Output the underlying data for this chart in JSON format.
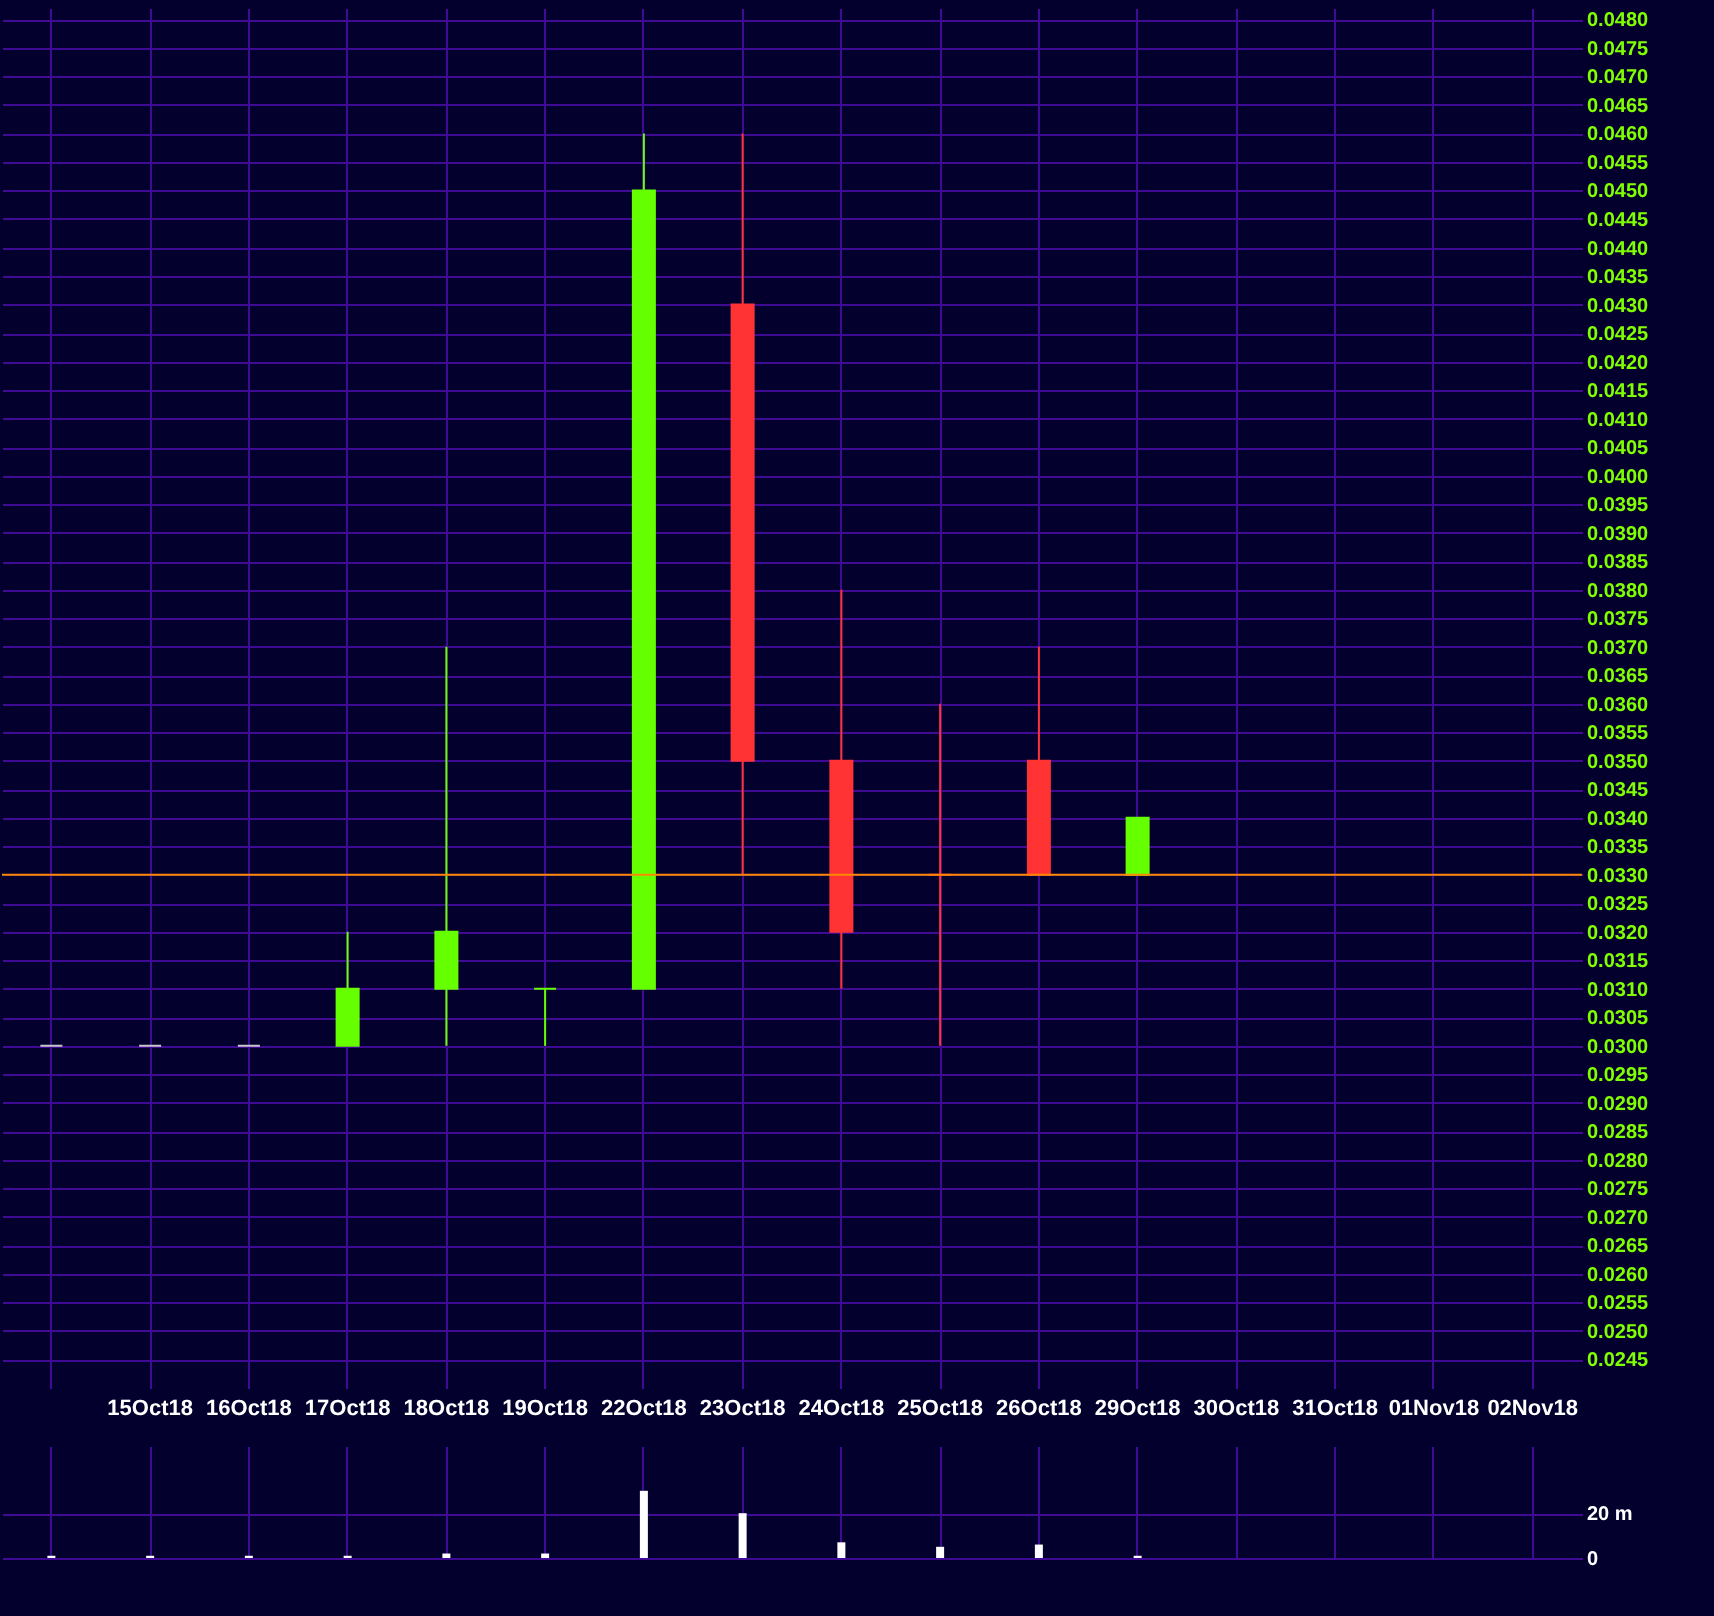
{
  "chart_data": [
    {
      "type": "candlestick",
      "categories": [
        null,
        "15Oct18",
        "16Oct18",
        "17Oct18",
        "18Oct18",
        "19Oct18",
        "22Oct18",
        "23Oct18",
        "24Oct18",
        "25Oct18",
        "26Oct18",
        "29Oct18",
        "30Oct18",
        "31Oct18",
        "01Nov18",
        "02Nov18"
      ],
      "ohlc": [
        [
          0.03,
          0.03,
          0.03,
          0.03
        ],
        [
          0.03,
          0.03,
          0.03,
          0.03
        ],
        [
          0.03,
          0.03,
          0.03,
          0.03
        ],
        [
          0.03,
          0.032,
          0.03,
          0.031
        ],
        [
          0.031,
          0.037,
          0.03,
          0.032
        ],
        [
          0.031,
          0.031,
          0.03,
          0.031
        ],
        [
          0.031,
          0.046,
          0.031,
          0.045
        ],
        [
          0.043,
          0.046,
          0.033,
          0.035
        ],
        [
          0.035,
          0.038,
          0.031,
          0.032
        ],
        [
          0.033,
          0.036,
          0.03,
          0.033
        ],
        [
          0.035,
          0.037,
          0.033,
          0.033
        ],
        [
          0.033,
          0.034,
          0.033,
          0.034
        ],
        null,
        null,
        null,
        null
      ],
      "colors": [
        "#c8c8c8",
        "#c8c8c8",
        "#c8c8c8",
        "#66ff00",
        "#66ff00",
        "#66ff00",
        "#66ff00",
        "#ff3333",
        "#ff3333",
        "#ff3333",
        "#ff3333",
        "#66ff00",
        null,
        null,
        null,
        null
      ],
      "ylim": [
        0.024,
        0.0482
      ],
      "yticks": [
        {
          "value": 0.0245,
          "label": "0.0245"
        },
        {
          "value": 0.025,
          "label": "0.0250"
        },
        {
          "value": 0.0255,
          "label": "0.0255"
        },
        {
          "value": 0.026,
          "label": "0.0260"
        },
        {
          "value": 0.0265,
          "label": "0.0265"
        },
        {
          "value": 0.027,
          "label": "0.0270"
        },
        {
          "value": 0.0275,
          "label": "0.0275"
        },
        {
          "value": 0.028,
          "label": "0.0280"
        },
        {
          "value": 0.0285,
          "label": "0.0285"
        },
        {
          "value": 0.029,
          "label": "0.0290"
        },
        {
          "value": 0.0295,
          "label": "0.0295"
        },
        {
          "value": 0.03,
          "label": "0.0300"
        },
        {
          "value": 0.0305,
          "label": "0.0305"
        },
        {
          "value": 0.031,
          "label": "0.0310"
        },
        {
          "value": 0.0315,
          "label": "0.0315"
        },
        {
          "value": 0.032,
          "label": "0.0320"
        },
        {
          "value": 0.0325,
          "label": "0.0325"
        },
        {
          "value": 0.033,
          "label": "0.0330"
        },
        {
          "value": 0.0335,
          "label": "0.0335"
        },
        {
          "value": 0.034,
          "label": "0.0340"
        },
        {
          "value": 0.0345,
          "label": "0.0345"
        },
        {
          "value": 0.035,
          "label": "0.0350"
        },
        {
          "value": 0.0355,
          "label": "0.0355"
        },
        {
          "value": 0.036,
          "label": "0.0360"
        },
        {
          "value": 0.0365,
          "label": "0.0365"
        },
        {
          "value": 0.037,
          "label": "0.0370"
        },
        {
          "value": 0.0375,
          "label": "0.0375"
        },
        {
          "value": 0.038,
          "label": "0.0380"
        },
        {
          "value": 0.0385,
          "label": "0.0385"
        },
        {
          "value": 0.039,
          "label": "0.0390"
        },
        {
          "value": 0.0395,
          "label": "0.0395"
        },
        {
          "value": 0.04,
          "label": "0.0400"
        },
        {
          "value": 0.0405,
          "label": "0.0405"
        },
        {
          "value": 0.041,
          "label": "0.0410"
        },
        {
          "value": 0.0415,
          "label": "0.0415"
        },
        {
          "value": 0.042,
          "label": "0.0420"
        },
        {
          "value": 0.0425,
          "label": "0.0425"
        },
        {
          "value": 0.043,
          "label": "0.0430"
        },
        {
          "value": 0.0435,
          "label": "0.0435"
        },
        {
          "value": 0.044,
          "label": "0.0440"
        },
        {
          "value": 0.0445,
          "label": "0.0445"
        },
        {
          "value": 0.045,
          "label": "0.0450"
        },
        {
          "value": 0.0455,
          "label": "0.0455"
        },
        {
          "value": 0.046,
          "label": "0.0460"
        },
        {
          "value": 0.0465,
          "label": "0.0465"
        },
        {
          "value": 0.047,
          "label": "0.0470"
        },
        {
          "value": 0.0475,
          "label": "0.0475"
        },
        {
          "value": 0.048,
          "label": "0.0480"
        }
      ],
      "ref_lines": [
        {
          "axis": "y",
          "value": 0.033,
          "color": "#ff8800"
        }
      ],
      "grid": true
    },
    {
      "type": "bar",
      "categories": [
        null,
        null,
        null,
        null,
        null,
        null,
        null,
        null,
        null,
        null,
        null,
        null,
        null,
        null,
        null,
        null
      ],
      "values": [
        1,
        1,
        1,
        1,
        2,
        2,
        30,
        20,
        7,
        5,
        6,
        1,
        null,
        null,
        null,
        null
      ],
      "color": "#ffffff",
      "ylim": [
        0,
        50
      ],
      "yticks": [
        {
          "value": 0,
          "label": "0"
        },
        {
          "value": 20,
          "label": "20 m"
        }
      ],
      "grid": true,
      "tick_labels": "y"
    }
  ]
}
